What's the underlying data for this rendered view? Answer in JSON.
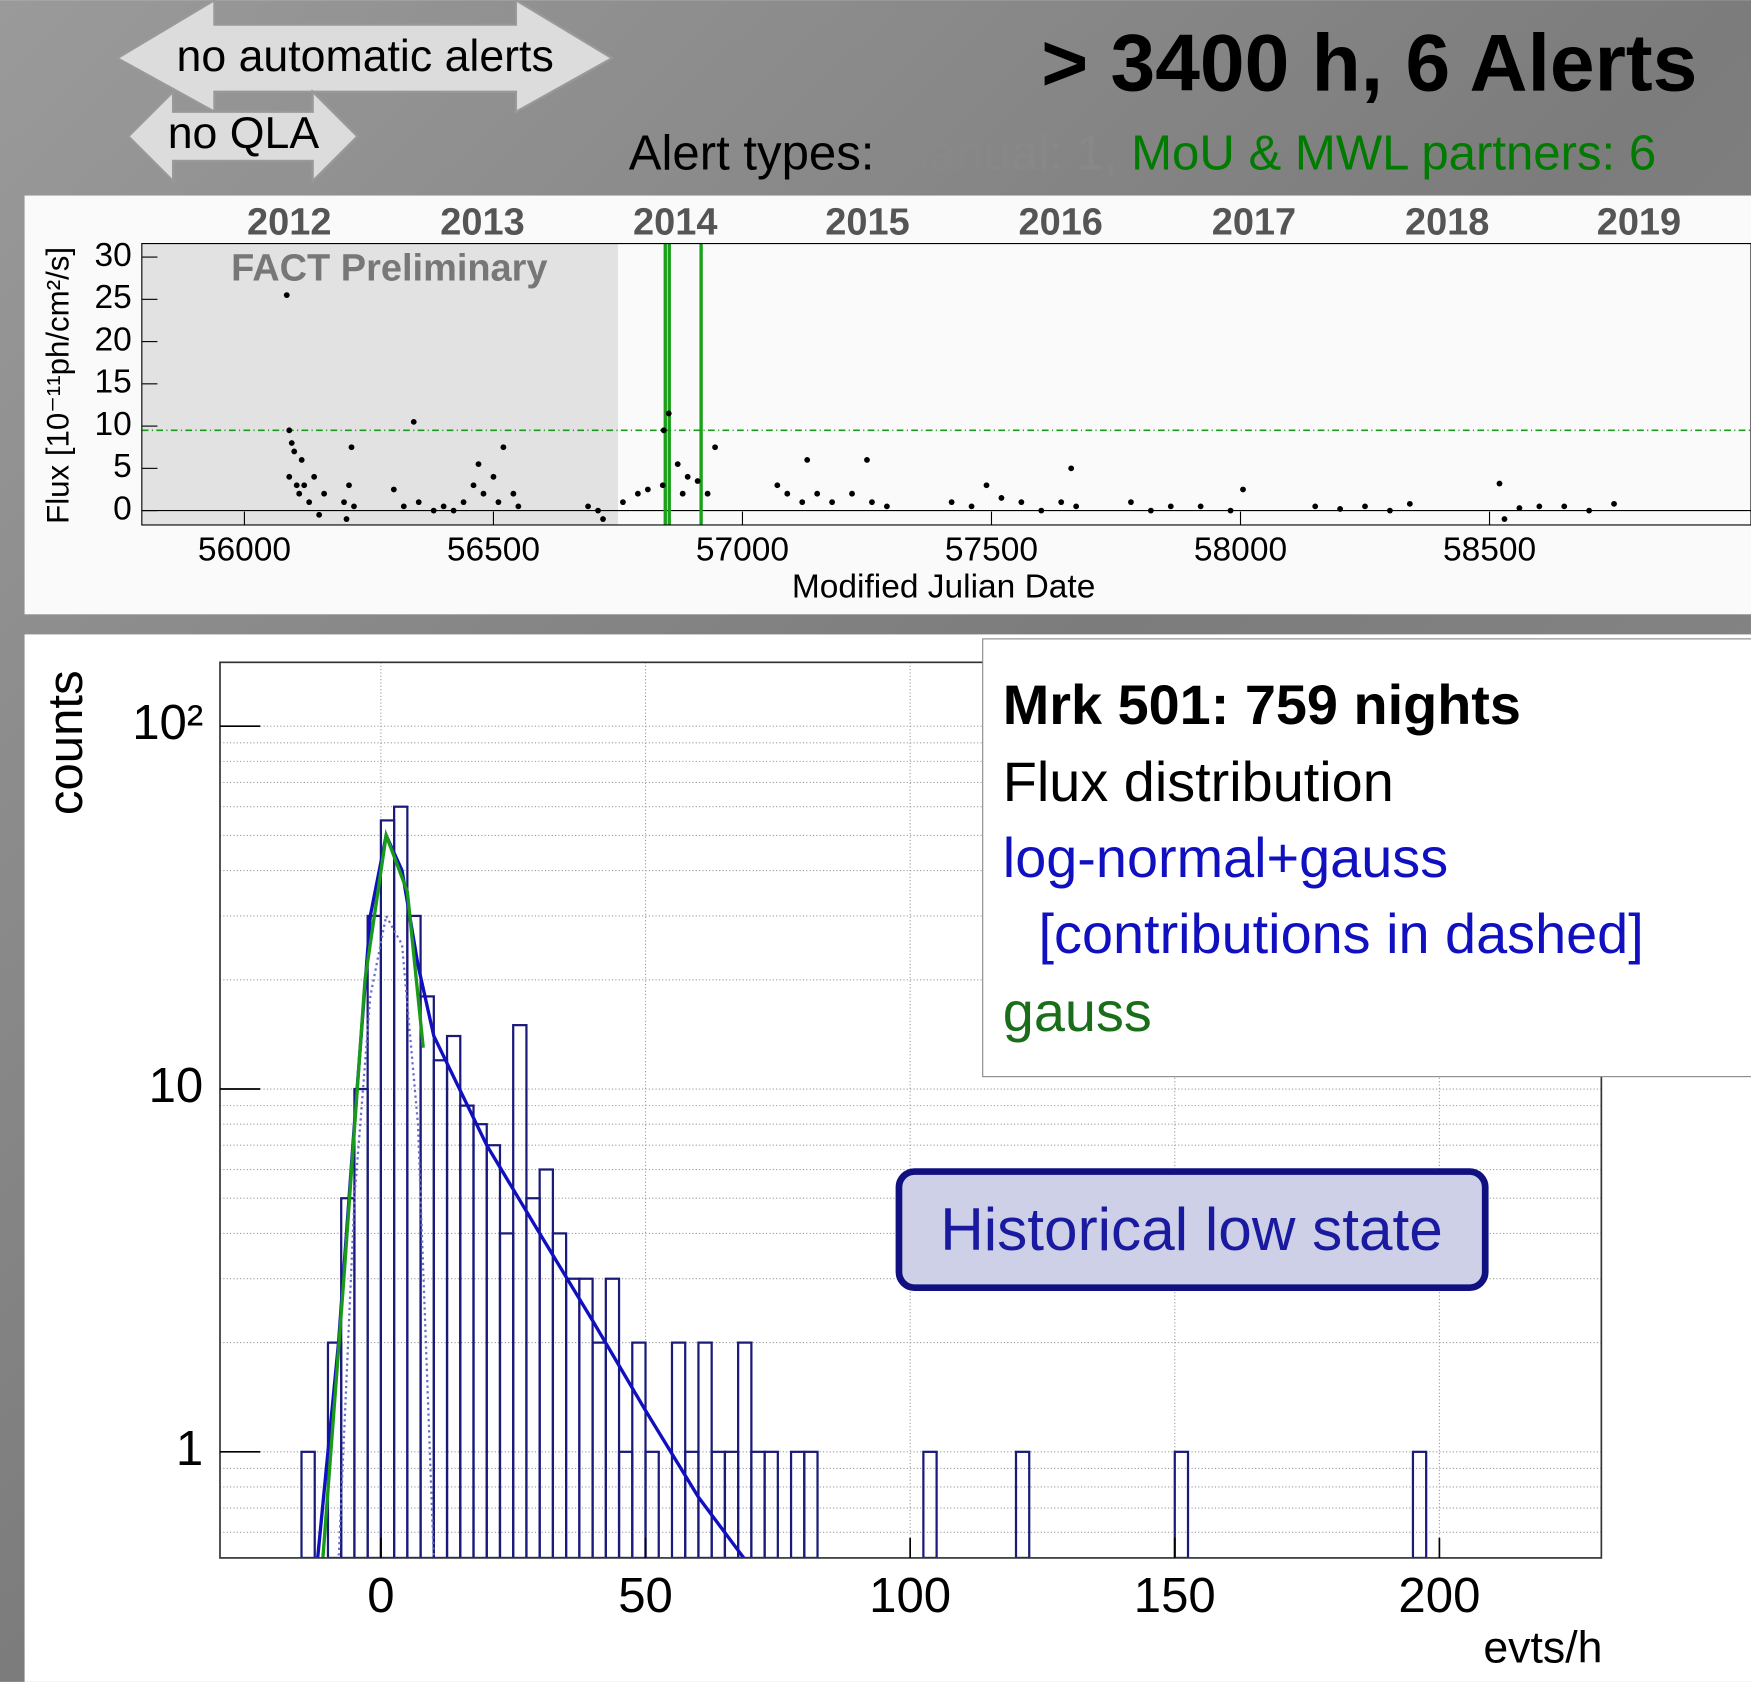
{
  "header": {
    "no_alerts": "no automatic alerts",
    "no_qla": "no QLA",
    "title": "> 3400 h, 6 Alerts",
    "alert_types": {
      "prefix": "Alert types: ",
      "manual": "Manual: 1,",
      "partners": " MoU & MWL partners: 6"
    }
  },
  "chart_data": [
    {
      "type": "scatter",
      "title": "FACT Preliminary",
      "x_label": "Modified Julian Date",
      "y_label": "Flux [10⁻¹¹ph/cm²/s]",
      "xlim": [
        55794,
        59025
      ],
      "ylim": [
        -1.7,
        31.6
      ],
      "xticks": [
        56000,
        56500,
        57000,
        57500,
        58000,
        58500
      ],
      "yticks": [
        0,
        5,
        10,
        15,
        20,
        25,
        30
      ],
      "x2ticks": [
        {
          "value": 56090,
          "label": "2012"
        },
        {
          "value": 56478,
          "label": "2013"
        },
        {
          "value": 56865,
          "label": "2014"
        },
        {
          "value": 57251,
          "label": "2015"
        },
        {
          "value": 57639,
          "label": "2016"
        },
        {
          "value": 58027,
          "label": "2017"
        },
        {
          "value": 58415,
          "label": "2018"
        },
        {
          "value": 58800,
          "label": "2019"
        }
      ],
      "shaded": [
        {
          "end": 56265,
          "color": "#cfcfcf"
        },
        {
          "end": 56750,
          "color": "#e2e2e2"
        }
      ],
      "alerts": [
        56845,
        56853,
        56917
      ],
      "alert_color": "#1aa01a",
      "threshold": 9.5,
      "threshold_color": "#1a9a1a",
      "color": "#000000",
      "x": [
        56085,
        56090,
        56095,
        56100,
        56090,
        56105,
        56110,
        56115,
        56120,
        56130,
        56140,
        56150,
        56160,
        56200,
        56205,
        56210,
        56215,
        56220,
        56300,
        56320,
        56340,
        56350,
        56380,
        56400,
        56420,
        56440,
        56460,
        56470,
        56480,
        56500,
        56510,
        56520,
        56540,
        56550,
        56690,
        56710,
        56720,
        56760,
        56790,
        56810,
        56842,
        56852,
        56840,
        56870,
        56880,
        56890,
        56910,
        56930,
        56945,
        57070,
        57090,
        57120,
        57130,
        57150,
        57180,
        57220,
        57250,
        57260,
        57290,
        57420,
        57460,
        57490,
        57520,
        57560,
        57600,
        57640,
        57660,
        57670,
        57780,
        57820,
        57860,
        57920,
        57980,
        58005,
        58150,
        58200,
        58250,
        58300,
        58340,
        58520,
        58530,
        58560,
        58600,
        58650,
        58700,
        58750
      ],
      "values": [
        25.5,
        9.5,
        8,
        7,
        4,
        3,
        2,
        6,
        3,
        1,
        4,
        -0.5,
        2,
        1,
        -1,
        3,
        7.5,
        0.5,
        2.5,
        0.5,
        10.5,
        1,
        0,
        0.5,
        0,
        1,
        3,
        5.5,
        2,
        4,
        1,
        7.5,
        2,
        0.5,
        0.5,
        0,
        -1,
        1,
        2,
        2.5,
        9.5,
        11.5,
        3,
        5.5,
        2,
        4,
        3.5,
        2,
        7.5,
        3,
        2,
        1,
        6,
        2,
        1,
        2,
        6,
        1,
        0.5,
        1,
        0.5,
        3,
        1.5,
        1,
        0,
        1,
        5,
        0.5,
        1,
        0,
        0.5,
        0.5,
        0,
        2.5,
        0.5,
        0.2,
        0.5,
        0,
        0.8,
        3.2,
        -1,
        0.3,
        0.5,
        0.5,
        0,
        0.8
      ]
    },
    {
      "type": "histogram",
      "x_label": "evts/h",
      "y_label": "counts",
      "log_y": true,
      "grid": true,
      "color": "#1a1a7a",
      "xlim": [
        -30.4,
        230.6
      ],
      "ylim": [
        0.51,
        150
      ],
      "xticks": [
        0,
        50,
        100,
        150,
        200
      ],
      "yticks": [
        1,
        10,
        {
          "value": 100,
          "label": "10²"
        }
      ],
      "yminor": [
        0.6,
        0.7,
        0.8,
        0.9,
        2,
        3,
        4,
        5,
        6,
        7,
        8,
        9,
        20,
        30,
        40,
        50,
        60,
        70,
        80,
        90
      ],
      "bins": [
        -15,
        -12.5,
        -10,
        -7.5,
        -5,
        -2.5,
        0,
        2.5,
        5,
        7.5,
        10,
        12.5,
        15,
        17.5,
        20,
        22.5,
        25,
        27.5,
        30,
        32.5,
        35,
        37.5,
        40,
        42.5,
        45,
        47.5,
        50,
        52.5,
        55,
        57.5,
        60,
        62.5,
        65,
        67.5,
        70,
        72.5,
        75,
        77.5,
        80,
        82.5,
        85,
        87.5,
        90,
        92.5,
        95,
        97.5,
        100,
        102.5,
        105,
        107.5,
        110,
        112.5,
        115,
        117.5,
        120,
        122.5,
        125,
        127.5,
        130,
        132.5,
        135,
        137.5,
        140,
        142.5,
        145,
        147.5,
        150,
        152.5,
        155,
        157.5,
        160,
        162.5,
        165,
        167.5,
        170,
        172.5,
        175,
        177.5,
        180,
        182.5,
        185,
        187.5,
        190,
        192.5,
        195,
        197.5,
        200
      ],
      "counts": [
        1,
        0,
        2,
        5,
        10,
        30,
        55,
        60,
        30,
        18,
        12,
        14,
        9,
        8,
        7,
        4,
        15,
        5,
        6,
        4,
        3,
        3,
        2,
        3,
        1,
        2,
        1,
        0,
        2,
        1,
        2,
        1,
        1,
        2,
        1,
        1,
        0,
        1,
        1,
        0,
        0,
        0,
        0,
        0,
        0,
        0,
        0,
        1,
        0,
        0,
        0,
        0,
        0,
        0,
        1,
        0,
        0,
        0,
        0,
        0,
        0,
        0,
        0,
        0,
        0,
        0,
        1,
        0,
        0,
        0,
        0,
        0,
        0,
        0,
        0,
        0,
        0,
        0,
        0,
        0,
        0,
        0,
        0,
        0,
        1,
        0
      ],
      "fits": [
        {
          "name": "log-normal+gauss",
          "color": "#1010c0",
          "x": [
            -12,
            -8,
            -5,
            -2,
            1,
            4,
            7,
            10,
            20,
            30,
            40,
            50,
            60,
            69
          ],
          "values": [
            0.5,
            2,
            8,
            30,
            50,
            40,
            22,
            14,
            7,
            4,
            2.3,
            1.3,
            0.75,
            0.5
          ]
        },
        {
          "name": "gauss",
          "color": "#1a9a1a",
          "x": [
            -11,
            -7,
            -3,
            1,
            5,
            8
          ],
          "values": [
            0.5,
            3,
            20,
            50,
            35,
            13
          ]
        },
        {
          "color": "#6a6ad0",
          "dashed": true,
          "x": [
            -8,
            -5,
            -2,
            1,
            4,
            7,
            10
          ],
          "values": [
            0.5,
            5,
            18,
            30,
            25,
            8,
            0.5
          ]
        }
      ],
      "box_title": "Mrk 501: 759 nights",
      "box_subtitle": "Flux distribution",
      "box_note": "[contributions in dashed]",
      "annotation": "Historical low state"
    }
  ]
}
